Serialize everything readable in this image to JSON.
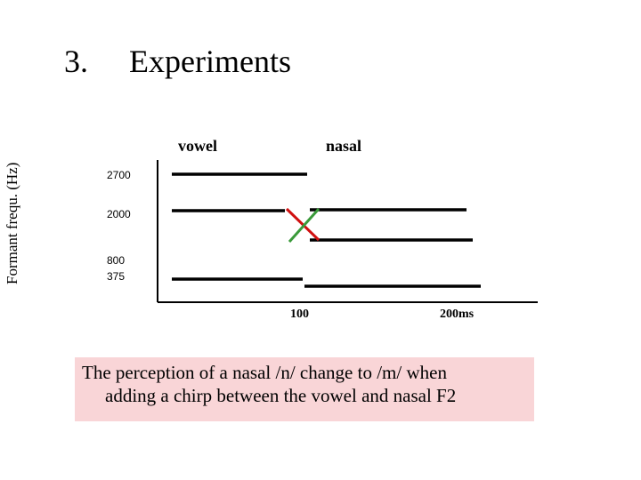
{
  "slide": {
    "number": "3.",
    "title": "Experiments"
  },
  "diagram": {
    "y_axis_label": "Formant frequ. (Hz)",
    "header_vowel": "vowel",
    "header_nasal": "nasal",
    "ticks_y": [
      "2700",
      "2000",
      "800",
      "375"
    ],
    "ticks_x": [
      "100",
      "200ms"
    ],
    "colors": {
      "lines": "#000000",
      "cross_red": "#d01010",
      "cross_green": "#3a9a3a"
    }
  },
  "caption": {
    "line1": "The perception of a nasal /n/ change to /m/ when",
    "line2": "adding a chirp between the vowel and nasal F2",
    "background": "#f9d5d7"
  }
}
